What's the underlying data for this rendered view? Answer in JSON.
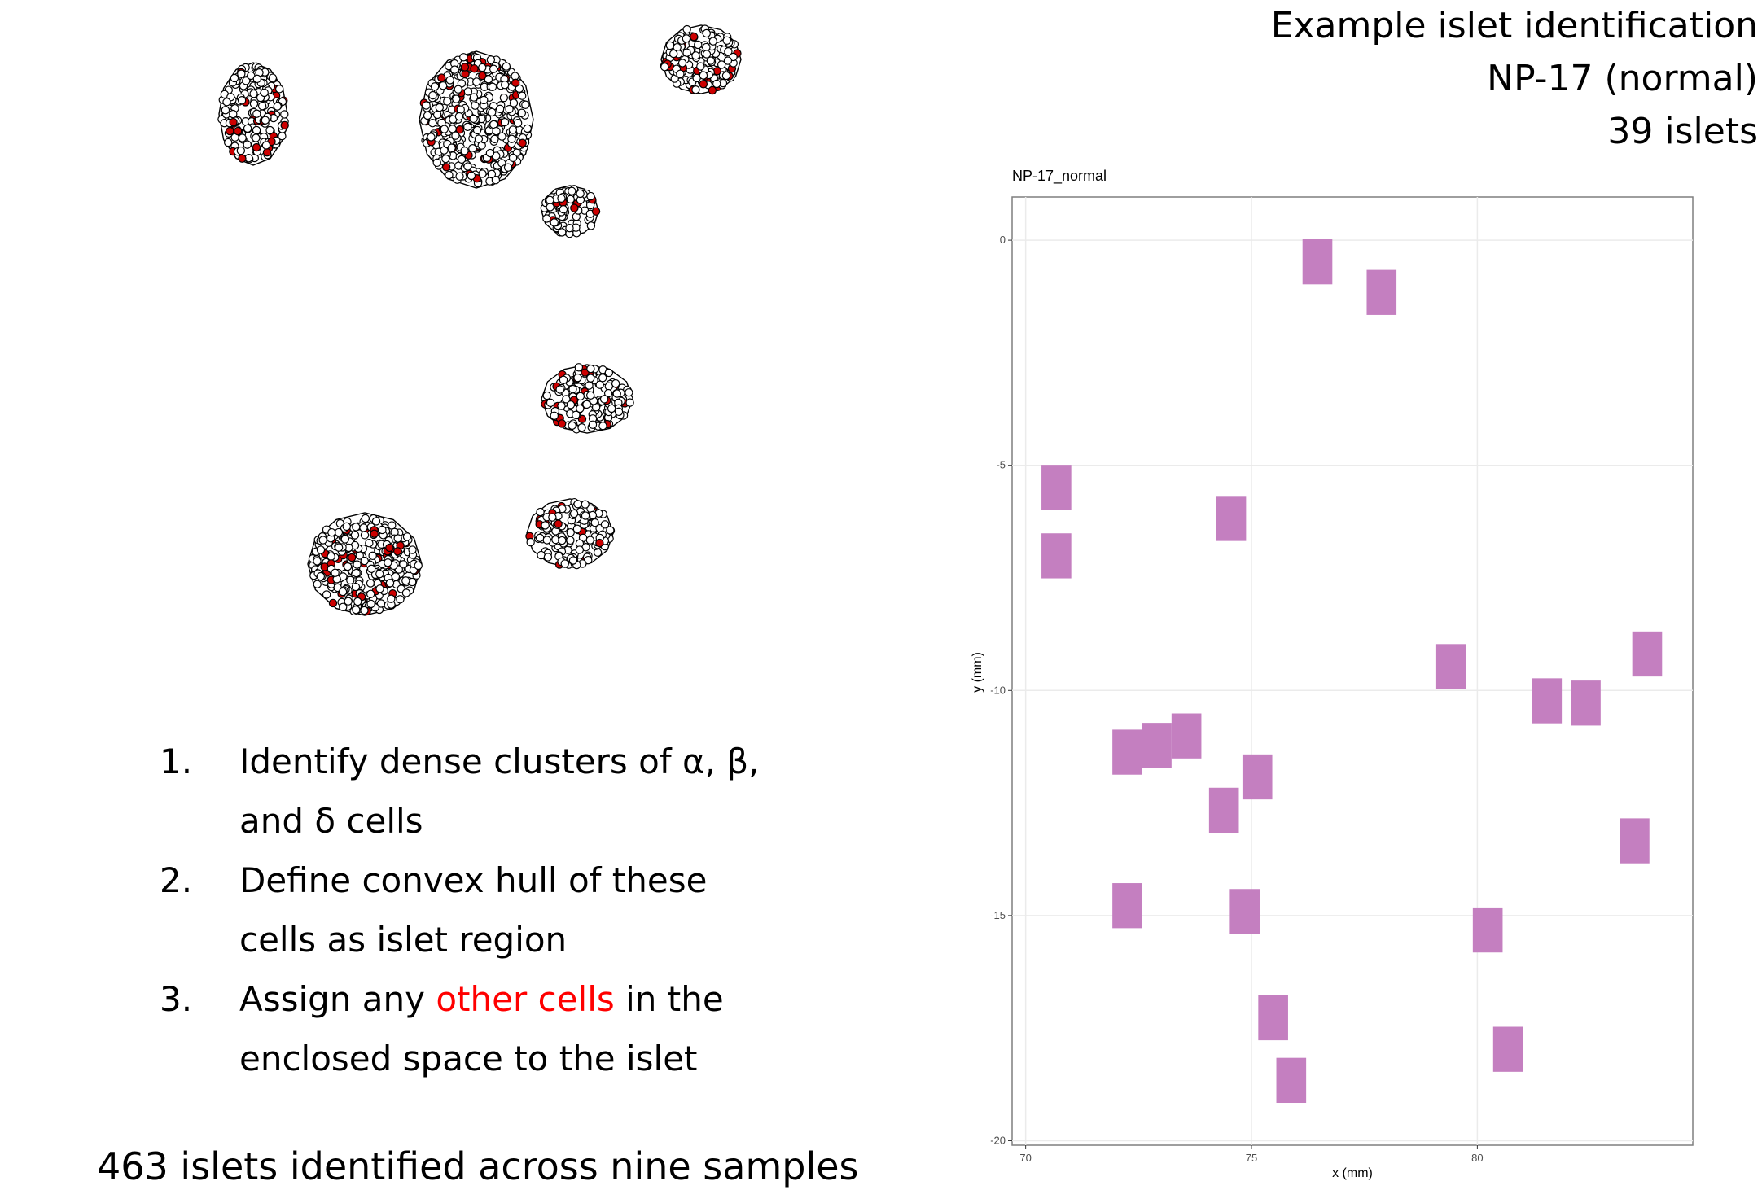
{
  "slide": {
    "title_lines": [
      "Example islet identification",
      "NP-17 (normal)",
      "39 islets"
    ],
    "steps": [
      {
        "number": "1.",
        "lines": [
          [
            "Identify dense clusters of α, β,"
          ],
          [
            "and δ cells"
          ]
        ]
      },
      {
        "number": "2.",
        "lines": [
          [
            "Define convex hull of these"
          ],
          [
            "cells as islet region"
          ]
        ]
      },
      {
        "number": "3.",
        "lines": [
          [
            "Assign any ",
            "other cells",
            " in the"
          ],
          [
            "enclosed space to the islet"
          ]
        ]
      }
    ],
    "summary": "463 islets identified across nine samples"
  },
  "chart_data": {
    "type": "tile",
    "title": "NP-17_normal",
    "x_label": "x (mm)",
    "y_label": "y (mm)",
    "x": [
      76.46,
      77.88,
      70.68,
      70.68,
      74.55,
      79.42,
      83.76,
      81.54,
      82.4,
      72.25,
      72.9,
      73.56,
      75.13,
      74.39,
      83.48,
      72.25,
      74.85,
      80.23,
      75.48,
      80.68,
      75.88
    ],
    "y": [
      -0.48,
      -1.16,
      -5.49,
      -7.01,
      -6.18,
      -9.47,
      -9.19,
      -10.23,
      -10.28,
      -11.37,
      -11.22,
      -11.01,
      -11.92,
      -12.66,
      -13.34,
      -14.78,
      -14.91,
      -15.32,
      -17.27,
      -17.97,
      -18.66
    ],
    "color": "#c47fc0",
    "xlim": [
      69.7,
      84.77
    ],
    "ylim": [
      -20.1,
      0.96
    ],
    "xticks": [
      70,
      75,
      80
    ],
    "yticks": [
      0,
      -5,
      -10,
      -15,
      -20
    ],
    "grid": true
  }
}
